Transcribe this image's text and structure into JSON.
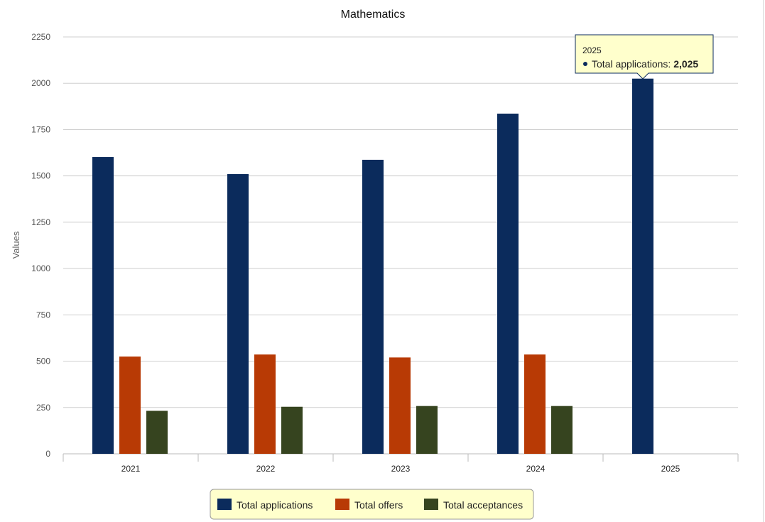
{
  "chart_data": {
    "type": "bar",
    "title": "Mathematics",
    "xlabel": "",
    "ylabel": "Values",
    "ylim": [
      0,
      2250
    ],
    "yticks": [
      0,
      250,
      500,
      750,
      1000,
      1250,
      1500,
      1750,
      2000,
      2250
    ],
    "categories": [
      "2021",
      "2022",
      "2023",
      "2024",
      "2025"
    ],
    "series": [
      {
        "name": "Total applications",
        "color": "#0b2b5c",
        "values": [
          1602,
          1510,
          1587,
          1836,
          2025
        ]
      },
      {
        "name": "Total offers",
        "color": "#b83a05",
        "values": [
          525,
          536,
          520,
          536,
          null
        ]
      },
      {
        "name": "Total acceptances",
        "color": "#36441f",
        "values": [
          232,
          254,
          258,
          258,
          null
        ]
      }
    ],
    "grid": true,
    "legend_position": "bottom-center",
    "legend_background": "#ffffcc",
    "tooltip": {
      "category": "2025",
      "series": "Total applications",
      "label": "Total applications: ",
      "value_text": "2,025"
    }
  }
}
